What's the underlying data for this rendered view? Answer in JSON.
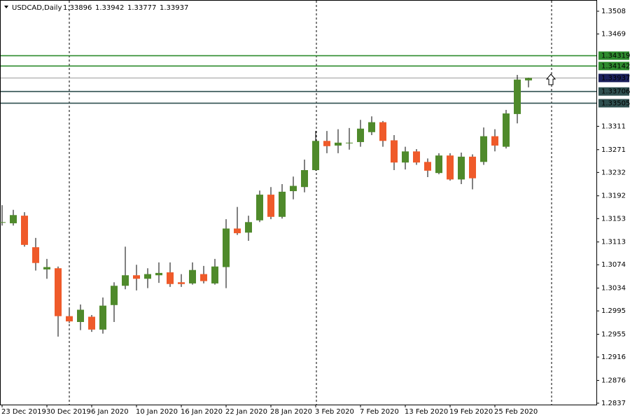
{
  "chart_data": {
    "type": "candlestick",
    "symbol": "USDCAD,Daily",
    "categories": [
      "23 Dec 2019",
      null,
      null,
      null,
      "30 Dec 2019",
      null,
      null,
      null,
      "6 Jan 2020",
      null,
      null,
      null,
      "10 Jan 2020",
      null,
      null,
      null,
      "16 Jan 2020",
      null,
      null,
      null,
      "22 Jan 2020",
      null,
      null,
      null,
      "28 Jan 2020",
      null,
      null,
      null,
      "3 Feb 2020",
      null,
      null,
      null,
      "7 Feb 2020",
      null,
      null,
      null,
      "13 Feb 2020",
      null,
      null,
      null,
      "19 Feb 2020",
      null,
      null,
      null,
      "25 Feb 2020",
      null,
      null,
      null
    ],
    "open": [
      1.3146,
      1.3145,
      1.3158,
      1.3104,
      1.3066,
      1.3068,
      1.2986,
      1.2976,
      1.2985,
      1.2963,
      1.3005,
      1.3038,
      1.3056,
      1.305,
      1.3056,
      1.3061,
      1.3044,
      1.3042,
      1.3058,
      1.3042,
      1.307,
      1.3136,
      1.3129,
      1.315,
      1.3194,
      1.3156,
      1.32,
      1.3207,
      1.3236,
      1.3286,
      1.3278,
      1.3282,
      1.3284,
      1.3301,
      1.3318,
      1.3287,
      1.3249,
      1.3268,
      1.325,
      1.3231,
      1.3261,
      1.322,
      1.3259,
      1.325,
      1.3294,
      1.3276,
      1.3332,
      1.33896
    ],
    "high": [
      1.3176,
      1.3168,
      1.3164,
      1.312,
      1.3084,
      1.3071,
      1.3,
      1.3006,
      1.2988,
      1.3018,
      1.3044,
      1.3105,
      1.3074,
      1.3068,
      1.3078,
      1.3078,
      1.3058,
      1.3078,
      1.3072,
      1.3084,
      1.3152,
      1.3173,
      1.3158,
      1.3201,
      1.3207,
      1.3212,
      1.3225,
      1.3254,
      1.3303,
      1.3303,
      1.3306,
      1.3308,
      1.3322,
      1.3328,
      1.332,
      1.3296,
      1.3276,
      1.3272,
      1.3256,
      1.3265,
      1.3265,
      1.3266,
      1.3263,
      1.3309,
      1.3306,
      1.3339,
      1.3399,
      1.33942
    ],
    "low": [
      1.3141,
      1.3141,
      1.3105,
      1.3064,
      1.305,
      1.2951,
      1.2974,
      1.2962,
      1.2959,
      1.2956,
      1.2976,
      1.3032,
      1.303,
      1.3034,
      1.3043,
      1.3036,
      1.3036,
      1.304,
      1.3042,
      1.304,
      1.3034,
      1.3125,
      1.3115,
      1.3147,
      1.3152,
      1.3153,
      1.3186,
      1.3198,
      1.3235,
      1.3265,
      1.3265,
      1.3271,
      1.3276,
      1.3296,
      1.3276,
      1.3236,
      1.3237,
      1.3245,
      1.3224,
      1.3229,
      1.3218,
      1.3212,
      1.3203,
      1.3245,
      1.3268,
      1.3273,
      1.3316,
      1.33777
    ],
    "close": [
      1.3147,
      1.3159,
      1.3108,
      1.3077,
      1.307,
      1.2986,
      1.2977,
      1.2997,
      1.2963,
      1.3004,
      1.3038,
      1.3056,
      1.305,
      1.3058,
      1.306,
      1.3041,
      1.3041,
      1.3065,
      1.3046,
      1.3071,
      1.3136,
      1.3128,
      1.3147,
      1.3194,
      1.3156,
      1.3199,
      1.3209,
      1.3236,
      1.3286,
      1.3277,
      1.3283,
      1.3283,
      1.3307,
      1.3318,
      1.3286,
      1.3249,
      1.3268,
      1.3249,
      1.3235,
      1.3261,
      1.322,
      1.3259,
      1.3222,
      1.3294,
      1.3278,
      1.3333,
      1.3391,
      1.33937
    ],
    "up_color": "#4f8a2b",
    "down_color": "#ef5a2a",
    "ylim": [
      1.28346,
      1.35272
    ],
    "yticks": [
      1.3508,
      1.3469,
      1.3311,
      1.3271,
      1.3232,
      1.3192,
      1.3153,
      1.3113,
      1.3074,
      1.3034,
      1.2995,
      1.2955,
      1.2916,
      1.2876,
      1.2837
    ],
    "levels": [
      {
        "value": 1.34319,
        "color": "#2e8b2e",
        "text_color": "#000000"
      },
      {
        "value": 1.34142,
        "color": "#2e8b2e",
        "text_color": "#000000"
      },
      {
        "value": 1.33937,
        "color": "#1b1f5c",
        "text_color": "#ffffff"
      },
      {
        "value": 1.33706,
        "color": "#2f4f4f",
        "text_color": "#ffffff"
      },
      {
        "value": 1.33505,
        "color": "#2f4f4f",
        "text_color": "#ffffff"
      }
    ]
  }
}
